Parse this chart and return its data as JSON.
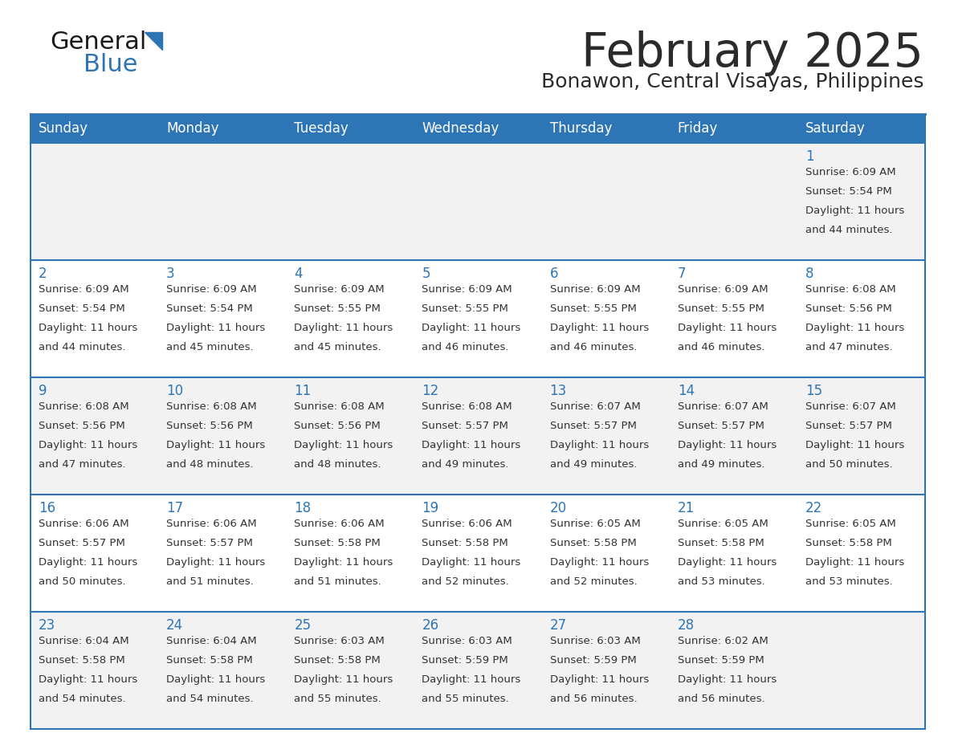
{
  "title": "February 2025",
  "subtitle": "Bonawon, Central Visayas, Philippines",
  "header_bg": "#2E75B6",
  "header_text_color": "#FFFFFF",
  "cell_bg_odd": "#F2F2F2",
  "cell_bg_even": "#FFFFFF",
  "day_number_color": "#2E75B6",
  "text_color": "#333333",
  "border_color": "#2E75B6",
  "line_color": "#A0A0A0",
  "days_of_week": [
    "Sunday",
    "Monday",
    "Tuesday",
    "Wednesday",
    "Thursday",
    "Friday",
    "Saturday"
  ],
  "calendar_data": [
    [
      null,
      null,
      null,
      null,
      null,
      null,
      {
        "day": "1",
        "sunrise": "6:09 AM",
        "sunset": "5:54 PM",
        "daylight_h": "11 hours",
        "daylight_m": "and 44 minutes."
      }
    ],
    [
      {
        "day": "2",
        "sunrise": "6:09 AM",
        "sunset": "5:54 PM",
        "daylight_h": "11 hours",
        "daylight_m": "and 44 minutes."
      },
      {
        "day": "3",
        "sunrise": "6:09 AM",
        "sunset": "5:54 PM",
        "daylight_h": "11 hours",
        "daylight_m": "and 45 minutes."
      },
      {
        "day": "4",
        "sunrise": "6:09 AM",
        "sunset": "5:55 PM",
        "daylight_h": "11 hours",
        "daylight_m": "and 45 minutes."
      },
      {
        "day": "5",
        "sunrise": "6:09 AM",
        "sunset": "5:55 PM",
        "daylight_h": "11 hours",
        "daylight_m": "and 46 minutes."
      },
      {
        "day": "6",
        "sunrise": "6:09 AM",
        "sunset": "5:55 PM",
        "daylight_h": "11 hours",
        "daylight_m": "and 46 minutes."
      },
      {
        "day": "7",
        "sunrise": "6:09 AM",
        "sunset": "5:55 PM",
        "daylight_h": "11 hours",
        "daylight_m": "and 46 minutes."
      },
      {
        "day": "8",
        "sunrise": "6:08 AM",
        "sunset": "5:56 PM",
        "daylight_h": "11 hours",
        "daylight_m": "and 47 minutes."
      }
    ],
    [
      {
        "day": "9",
        "sunrise": "6:08 AM",
        "sunset": "5:56 PM",
        "daylight_h": "11 hours",
        "daylight_m": "and 47 minutes."
      },
      {
        "day": "10",
        "sunrise": "6:08 AM",
        "sunset": "5:56 PM",
        "daylight_h": "11 hours",
        "daylight_m": "and 48 minutes."
      },
      {
        "day": "11",
        "sunrise": "6:08 AM",
        "sunset": "5:56 PM",
        "daylight_h": "11 hours",
        "daylight_m": "and 48 minutes."
      },
      {
        "day": "12",
        "sunrise": "6:08 AM",
        "sunset": "5:57 PM",
        "daylight_h": "11 hours",
        "daylight_m": "and 49 minutes."
      },
      {
        "day": "13",
        "sunrise": "6:07 AM",
        "sunset": "5:57 PM",
        "daylight_h": "11 hours",
        "daylight_m": "and 49 minutes."
      },
      {
        "day": "14",
        "sunrise": "6:07 AM",
        "sunset": "5:57 PM",
        "daylight_h": "11 hours",
        "daylight_m": "and 49 minutes."
      },
      {
        "day": "15",
        "sunrise": "6:07 AM",
        "sunset": "5:57 PM",
        "daylight_h": "11 hours",
        "daylight_m": "and 50 minutes."
      }
    ],
    [
      {
        "day": "16",
        "sunrise": "6:06 AM",
        "sunset": "5:57 PM",
        "daylight_h": "11 hours",
        "daylight_m": "and 50 minutes."
      },
      {
        "day": "17",
        "sunrise": "6:06 AM",
        "sunset": "5:57 PM",
        "daylight_h": "11 hours",
        "daylight_m": "and 51 minutes."
      },
      {
        "day": "18",
        "sunrise": "6:06 AM",
        "sunset": "5:58 PM",
        "daylight_h": "11 hours",
        "daylight_m": "and 51 minutes."
      },
      {
        "day": "19",
        "sunrise": "6:06 AM",
        "sunset": "5:58 PM",
        "daylight_h": "11 hours",
        "daylight_m": "and 52 minutes."
      },
      {
        "day": "20",
        "sunrise": "6:05 AM",
        "sunset": "5:58 PM",
        "daylight_h": "11 hours",
        "daylight_m": "and 52 minutes."
      },
      {
        "day": "21",
        "sunrise": "6:05 AM",
        "sunset": "5:58 PM",
        "daylight_h": "11 hours",
        "daylight_m": "and 53 minutes."
      },
      {
        "day": "22",
        "sunrise": "6:05 AM",
        "sunset": "5:58 PM",
        "daylight_h": "11 hours",
        "daylight_m": "and 53 minutes."
      }
    ],
    [
      {
        "day": "23",
        "sunrise": "6:04 AM",
        "sunset": "5:58 PM",
        "daylight_h": "11 hours",
        "daylight_m": "and 54 minutes."
      },
      {
        "day": "24",
        "sunrise": "6:04 AM",
        "sunset": "5:58 PM",
        "daylight_h": "11 hours",
        "daylight_m": "and 54 minutes."
      },
      {
        "day": "25",
        "sunrise": "6:03 AM",
        "sunset": "5:58 PM",
        "daylight_h": "11 hours",
        "daylight_m": "and 55 minutes."
      },
      {
        "day": "26",
        "sunrise": "6:03 AM",
        "sunset": "5:59 PM",
        "daylight_h": "11 hours",
        "daylight_m": "and 55 minutes."
      },
      {
        "day": "27",
        "sunrise": "6:03 AM",
        "sunset": "5:59 PM",
        "daylight_h": "11 hours",
        "daylight_m": "and 56 minutes."
      },
      {
        "day": "28",
        "sunrise": "6:02 AM",
        "sunset": "5:59 PM",
        "daylight_h": "11 hours",
        "daylight_m": "and 56 minutes."
      },
      null
    ]
  ]
}
